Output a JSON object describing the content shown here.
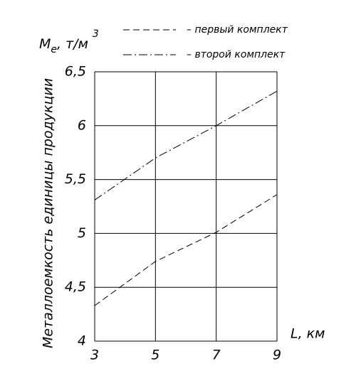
{
  "chart_data": {
    "type": "line",
    "y_label": "Металлоемкость единицы продукции",
    "y_unit": {
      "symbol": "M",
      "subscript": "e",
      "unit": ", т/м",
      "superscript": "3"
    },
    "x_label": "L, км",
    "x": [
      3,
      5,
      7,
      9
    ],
    "series": [
      {
        "name": "– первый комплект",
        "color": "#000000",
        "line_style": "dashed",
        "values": [
          4.33,
          4.74,
          5.01,
          5.36
        ]
      },
      {
        "name": "– второй комплект",
        "color": "#000000",
        "line_style": "dashdot",
        "values": [
          5.31,
          5.7,
          6.0,
          6.32
        ]
      }
    ],
    "xlim": [
      3,
      9
    ],
    "xticks": [
      3,
      5,
      7,
      9
    ],
    "ylim": [
      4,
      6.5
    ],
    "yticks": [
      4,
      {
        "value": 4.5,
        "label": "4,5"
      },
      5,
      {
        "value": 5.5,
        "label": "5,5"
      },
      6,
      {
        "value": 6.5,
        "label": "6,5"
      }
    ],
    "grid": true
  }
}
